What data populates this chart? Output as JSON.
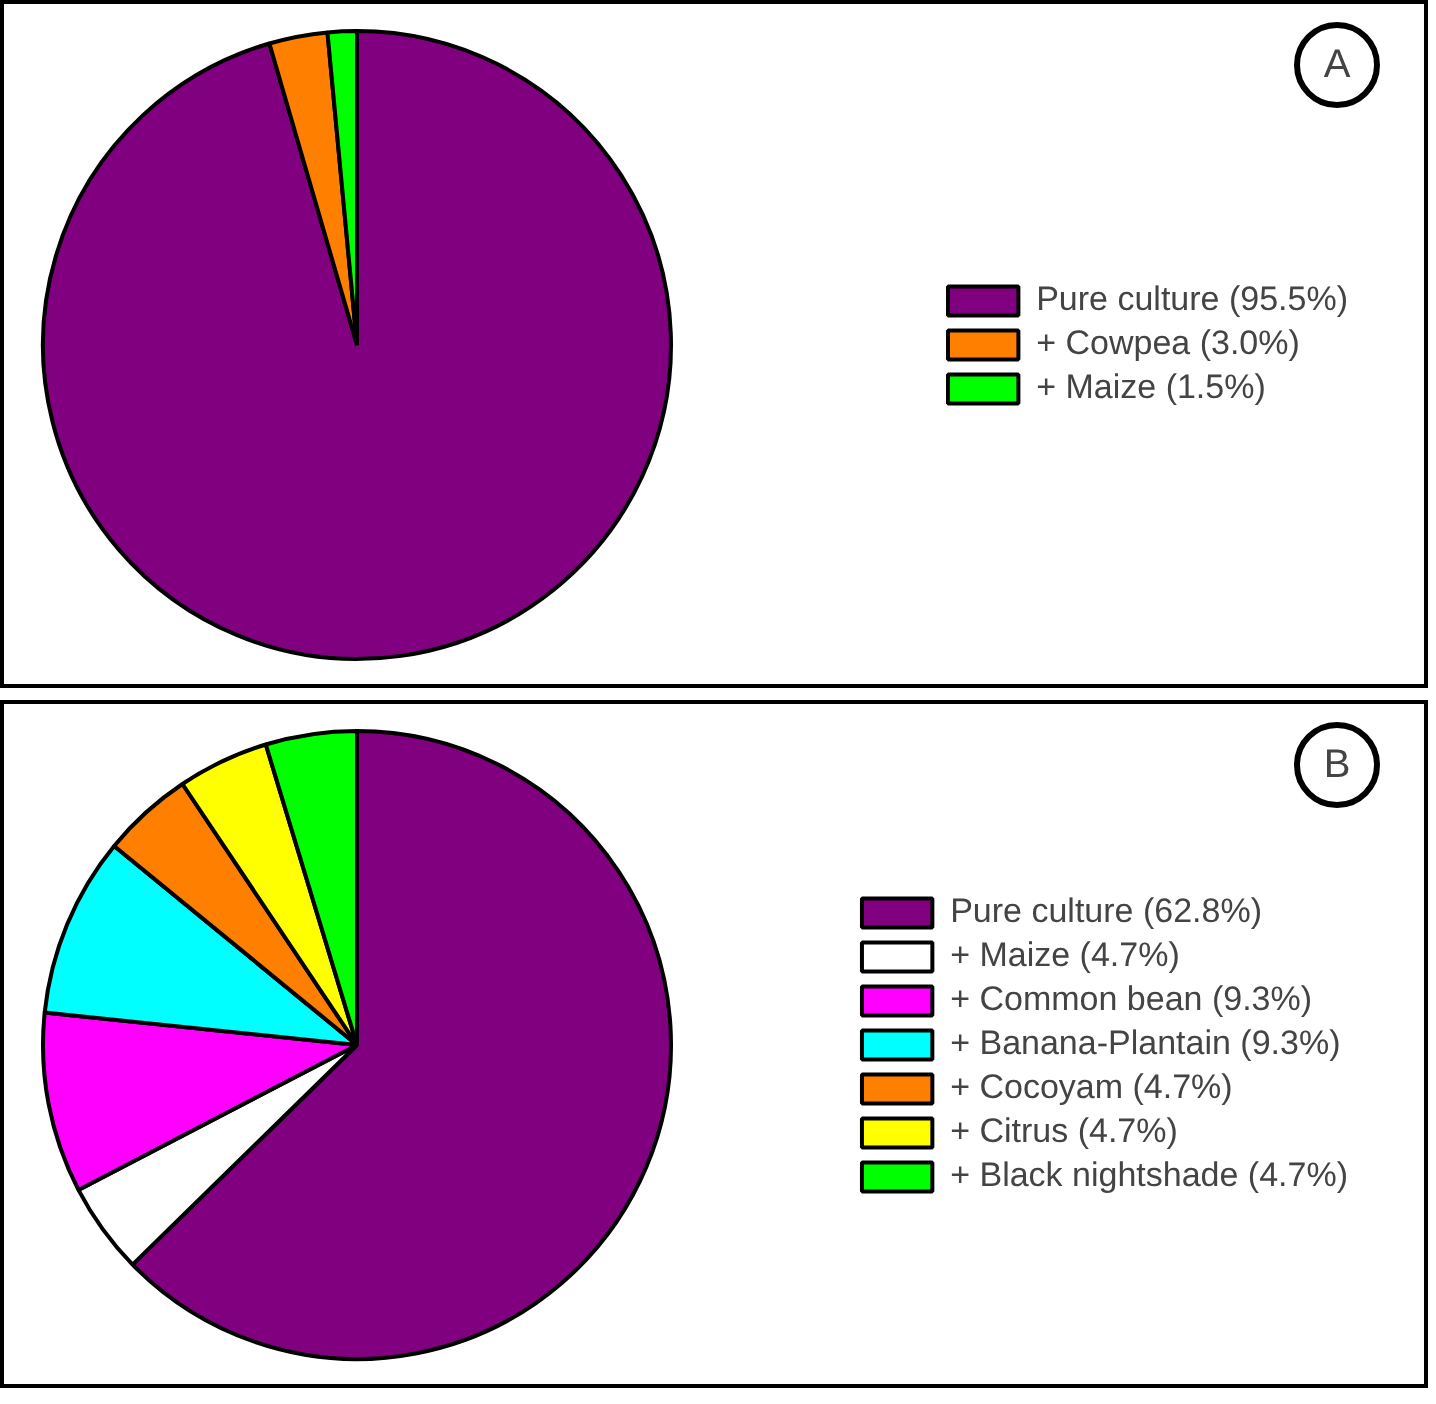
{
  "chart_data": [
    {
      "type": "pie",
      "categories": [
        "Pure culture (95.5%)",
        "+ Cowpea (3.0%)",
        "+ Maize (1.5%)"
      ],
      "values": [
        95.5,
        3.0,
        1.5
      ],
      "colors": [
        "#800080",
        "#ff8000",
        "#00ff00"
      ],
      "legend": "right",
      "annotations": [
        "A"
      ]
    },
    {
      "type": "pie",
      "categories": [
        "Pure culture (62.8%)",
        "+ Maize (4.7%)",
        "+ Common bean (9.3%)",
        "+ Banana-Plantain (9.3%)",
        "+ Cocoyam (4.7%)",
        "+ Citrus (4.7%)",
        "+ Black nightshade (4.7%)"
      ],
      "values": [
        62.8,
        4.7,
        9.3,
        9.3,
        4.7,
        4.7,
        4.7
      ],
      "colors": [
        "#800080",
        "#ffffff",
        "#ff00ff",
        "#00ffff",
        "#ff8000",
        "#ffff00",
        "#00ff00"
      ],
      "legend": "right",
      "annotations": [
        "B"
      ]
    }
  ]
}
